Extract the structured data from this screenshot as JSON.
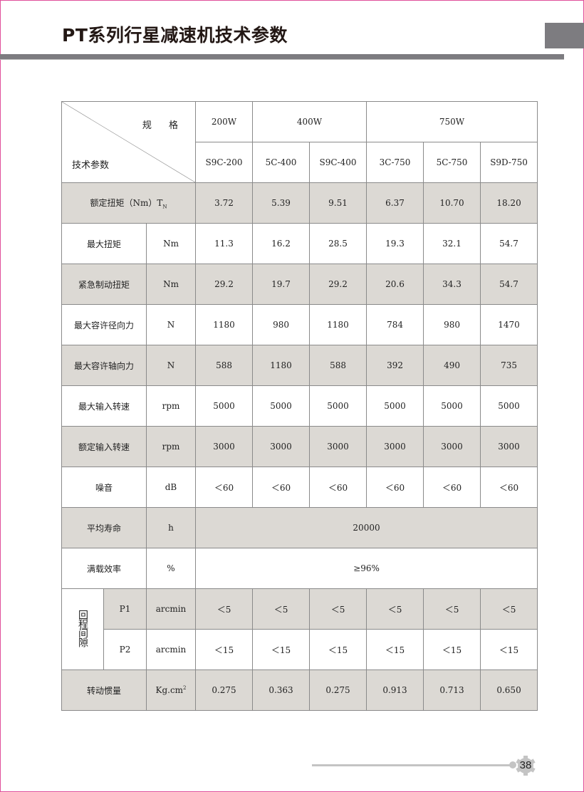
{
  "page": {
    "title": "PT系列行星减速机技术参数",
    "page_number": "38"
  },
  "table": {
    "header": {
      "spec_label": "规 格",
      "param_label": "技术参数",
      "power_groups": [
        "200W",
        "400W",
        "750W"
      ],
      "models": [
        "S9C-200",
        "5C-400",
        "S9C-400",
        "3C-750",
        "5C-750",
        "S9D-750"
      ]
    },
    "rated_torque": {
      "label": "额定扭矩（Nm）T",
      "sub": "N",
      "values": [
        "3.72",
        "5.39",
        "9.51",
        "6.37",
        "10.70",
        "18.20"
      ]
    },
    "rows": [
      {
        "label": "最大扭矩",
        "unit": "Nm",
        "values": [
          "11.3",
          "16.2",
          "28.5",
          "19.3",
          "32.1",
          "54.7"
        ]
      },
      {
        "label": "紧急制动扭矩",
        "unit": "Nm",
        "values": [
          "29.2",
          "19.7",
          "29.2",
          "20.6",
          "34.3",
          "54.7"
        ]
      },
      {
        "label": "最大容许径向力",
        "unit": "N",
        "values": [
          "1180",
          "980",
          "1180",
          "784",
          "980",
          "1470"
        ]
      },
      {
        "label": "最大容许轴向力",
        "unit": "N",
        "values": [
          "588",
          "1180",
          "588",
          "392",
          "490",
          "735"
        ]
      },
      {
        "label": "最大输入转速",
        "unit": "rpm",
        "values": [
          "5000",
          "5000",
          "5000",
          "5000",
          "5000",
          "5000"
        ]
      },
      {
        "label": "额定输入转速",
        "unit": "rpm",
        "values": [
          "3000",
          "3000",
          "3000",
          "3000",
          "3000",
          "3000"
        ]
      },
      {
        "label": "噪音",
        "unit": "dB",
        "values": [
          "＜60",
          "＜60",
          "＜60",
          "＜60",
          "＜60",
          "＜60"
        ]
      }
    ],
    "life": {
      "label": "平均寿命",
      "unit": "h",
      "value": "20000"
    },
    "efficiency": {
      "label": "满载效率",
      "unit": "%",
      "value": "≥96%"
    },
    "backlash": {
      "label": "回程间隙",
      "p1": {
        "label": "P1",
        "unit": "arcmin",
        "values": [
          "＜5",
          "＜5",
          "＜5",
          "＜5",
          "＜5",
          "＜5"
        ]
      },
      "p2": {
        "label": "P2",
        "unit": "arcmin",
        "values": [
          "＜15",
          "＜15",
          "＜15",
          "＜15",
          "＜15",
          "＜15"
        ]
      }
    },
    "inertia": {
      "label": "转动惯量",
      "unit": "Kg.cm",
      "unit_sup": "2",
      "values": [
        "0.275",
        "0.363",
        "0.275",
        "0.913",
        "0.713",
        "0.650"
      ]
    }
  },
  "colors": {
    "shade": "#dcd9d4",
    "accent_gray": "#7d7c80",
    "border_pink": "#e0509a"
  }
}
